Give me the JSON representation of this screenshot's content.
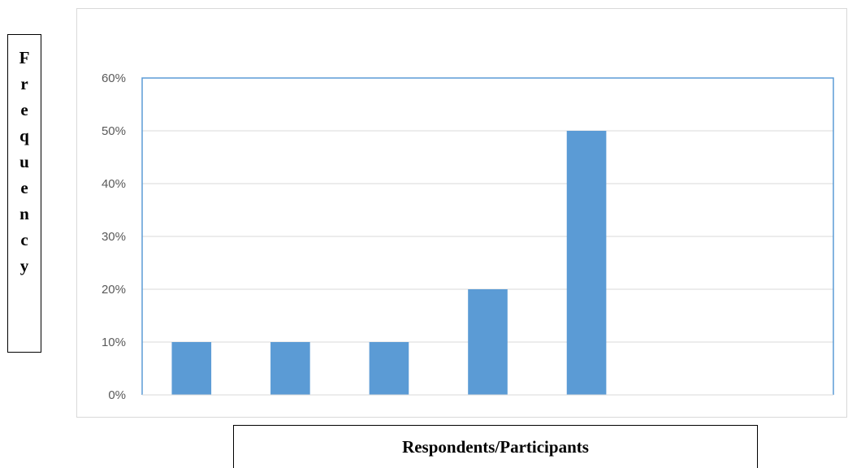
{
  "chart_data": {
    "type": "bar",
    "title": "",
    "ylabel": "Frequency",
    "xlabel": "Respondents/Participants",
    "categories": [
      "",
      "",
      "",
      "",
      "",
      "",
      ""
    ],
    "values": [
      0.1,
      0.1,
      0.1,
      0.2,
      0.5,
      0,
      0
    ],
    "ylim": [
      0,
      0.6
    ],
    "yticks": [
      "0%",
      "10%",
      "20%",
      "30%",
      "40%",
      "50%",
      "60%"
    ],
    "grid": true,
    "bar_color": "#5b9bd5",
    "axis_border_color": "#5b9bd5",
    "grid_color": "#d9d9d9"
  }
}
